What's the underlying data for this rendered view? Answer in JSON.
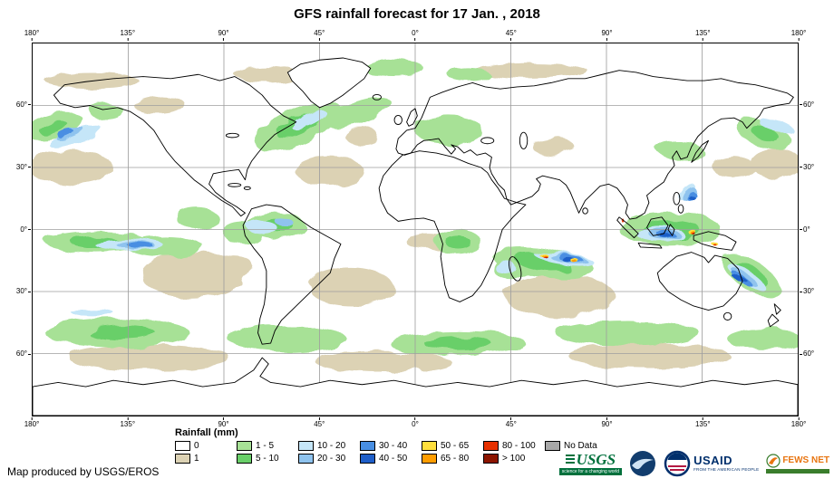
{
  "title": "GFS rainfall forecast for 17 Jan. , 2018",
  "map": {
    "lon_labels": [
      "180°",
      "135°",
      "90°",
      "45°",
      "0°",
      "45°",
      "90°",
      "135°",
      "180°"
    ],
    "lat_labels": [
      "60°",
      "30°",
      "0°",
      "30°",
      "60°"
    ],
    "grid_color": "#9e9e9e",
    "coastline_color": "#000000",
    "ocean_color": "#ffffff"
  },
  "legend": {
    "title": "Rainfall (mm)",
    "row1": [
      {
        "label": "0",
        "color": "#ffffff"
      },
      {
        "label": "1 - 5",
        "color": "#a7e196"
      },
      {
        "label": "10 - 20",
        "color": "#c5e6f8"
      },
      {
        "label": "30 - 40",
        "color": "#488ee2"
      },
      {
        "label": "50 - 65",
        "color": "#ffdf3d"
      },
      {
        "label": "80 - 100",
        "color": "#e63000"
      },
      {
        "label": "No Data",
        "color": "#a8a8a8"
      }
    ],
    "row2": [
      {
        "label": "1",
        "color": "#dcd2b4"
      },
      {
        "label": "5 - 10",
        "color": "#69cf69"
      },
      {
        "label": "20 - 30",
        "color": "#8fc3ee"
      },
      {
        "label": "40 - 50",
        "color": "#1e5ec8"
      },
      {
        "label": "65 - 80",
        "color": "#ff9d00"
      },
      {
        "label": "> 100",
        "color": "#8c1500"
      }
    ]
  },
  "footer": {
    "credit": "Map produced by USGS/EROS"
  },
  "logos": {
    "usgs_name": "USGS",
    "usgs_tagline": "science for a changing world",
    "usaid_name": "USAID",
    "usaid_tagline": "FROM THE AMERICAN PEOPLE",
    "fewsnet_name": "FEWS NET"
  }
}
